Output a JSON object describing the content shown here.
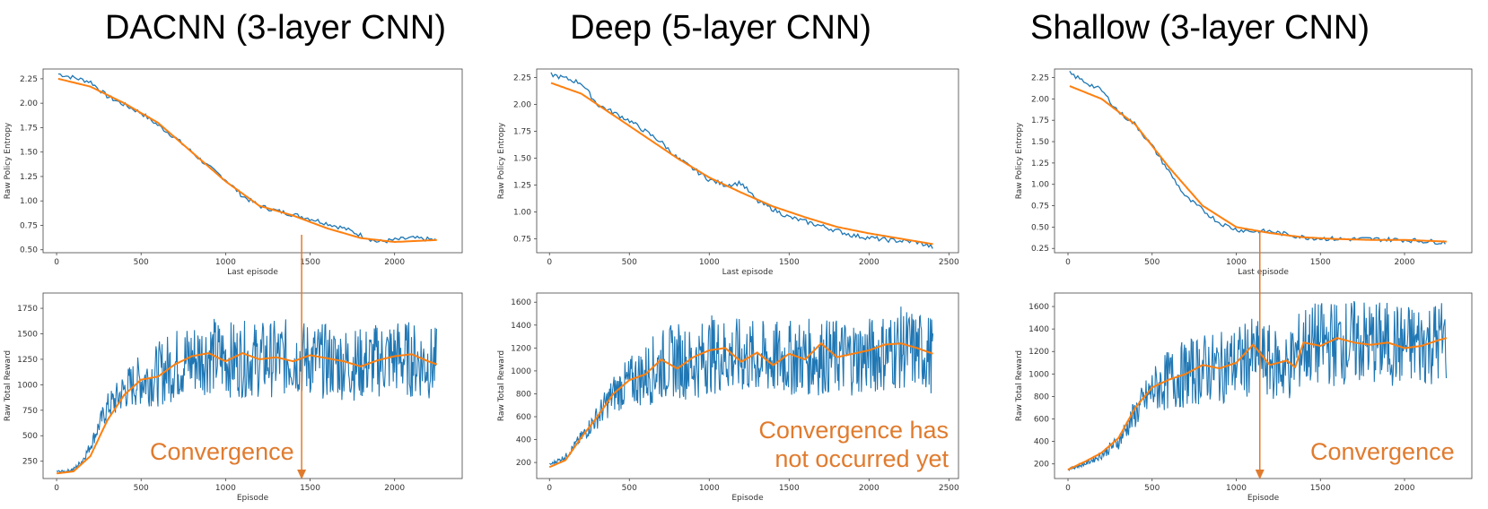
{
  "colors": {
    "raw": "#1F77B4",
    "smooth": "#FF7F0E",
    "annotation": "#E07B2E"
  },
  "columns": [
    {
      "title": "DACNN (3-layer CNN)",
      "annotation": [
        "Convergence"
      ],
      "convergence_episode": 1450
    },
    {
      "title": "Deep (5-layer CNN)",
      "annotation": [
        "Convergence has",
        "not occurred yet"
      ],
      "convergence_episode": null
    },
    {
      "title": "Shallow (3-layer CNN)",
      "annotation": [
        "Convergence"
      ],
      "convergence_episode": 1140
    }
  ],
  "chart_data": [
    {
      "panel": "DACNN entropy",
      "type": "line",
      "xlabel": "Last episode",
      "ylabel": "Raw Policy Entropy",
      "xlim": [
        -80,
        2400
      ],
      "ylim": [
        0.47,
        2.35
      ],
      "xticks": [
        0,
        500,
        1000,
        1500,
        2000
      ],
      "yticks": [
        0.5,
        0.75,
        1.0,
        1.25,
        1.5,
        1.75,
        2.0,
        2.25
      ],
      "ytick_labels": [
        "0.50",
        "0.75",
        "1.00",
        "1.25",
        "1.50",
        "1.75",
        "2.00",
        "2.25"
      ],
      "series": [
        {
          "role": "raw",
          "x": [
            10,
            200,
            300,
            500,
            700,
            900,
            1000,
            1100,
            1200,
            1300,
            1500,
            1700,
            1900,
            2000,
            2100,
            2250
          ],
          "y": [
            2.3,
            2.22,
            2.07,
            1.9,
            1.65,
            1.35,
            1.22,
            1.05,
            0.95,
            0.9,
            0.82,
            0.72,
            0.58,
            0.6,
            0.62,
            0.6
          ]
        },
        {
          "role": "smooth",
          "x": [
            10,
            200,
            400,
            600,
            800,
            1000,
            1200,
            1400,
            1600,
            1800,
            2000,
            2250
          ],
          "y": [
            2.25,
            2.17,
            2.0,
            1.8,
            1.5,
            1.2,
            0.95,
            0.85,
            0.72,
            0.62,
            0.58,
            0.6
          ]
        }
      ]
    },
    {
      "panel": "DACNN reward",
      "type": "line",
      "xlabel": "Episode",
      "ylabel": "Raw Total Reward",
      "xlim": [
        -80,
        2400
      ],
      "ylim": [
        80,
        1900
      ],
      "xticks": [
        0,
        500,
        1000,
        1500,
        2000
      ],
      "yticks": [
        250,
        500,
        750,
        1000,
        1250,
        1500,
        1750
      ],
      "ytick_labels": [
        "250",
        "500",
        "750",
        "1000",
        "1250",
        "1500",
        "1750"
      ],
      "series": [
        {
          "role": "raw_mean",
          "x": [
            0,
            50,
            100,
            150,
            200,
            250,
            300,
            350,
            400,
            500,
            600,
            700,
            800,
            900,
            1000,
            1200,
            1400,
            1600,
            1800,
            2000,
            2250
          ],
          "y": [
            150,
            150,
            170,
            250,
            400,
            600,
            780,
            850,
            950,
            1050,
            1100,
            1200,
            1250,
            1300,
            1250,
            1250,
            1270,
            1230,
            1200,
            1280,
            1200
          ]
        },
        {
          "role": "smooth",
          "x": [
            0,
            100,
            200,
            300,
            400,
            500,
            600,
            700,
            800,
            900,
            1000,
            1100,
            1200,
            1300,
            1400,
            1500,
            1600,
            1700,
            1800,
            1900,
            2000,
            2100,
            2200,
            2250
          ],
          "y": [
            130,
            150,
            300,
            650,
            900,
            1050,
            1080,
            1200,
            1280,
            1310,
            1230,
            1310,
            1250,
            1270,
            1230,
            1290,
            1260,
            1230,
            1180,
            1240,
            1280,
            1300,
            1230,
            1200
          ]
        }
      ]
    },
    {
      "panel": "Deep entropy",
      "type": "line",
      "xlabel": "Last episode",
      "ylabel": "Raw Policy Entropy",
      "xlim": [
        -80,
        2560
      ],
      "ylim": [
        0.62,
        2.33
      ],
      "xticks": [
        0,
        500,
        1000,
        1500,
        2000,
        2500
      ],
      "yticks": [
        0.75,
        1.0,
        1.25,
        1.5,
        1.75,
        2.0,
        2.25
      ],
      "ytick_labels": [
        "0.75",
        "1.00",
        "1.25",
        "1.50",
        "1.75",
        "2.00",
        "2.25"
      ],
      "series": [
        {
          "role": "raw",
          "x": [
            10,
            200,
            300,
            500,
            700,
            800,
            900,
            1000,
            1100,
            1200,
            1300,
            1500,
            1700,
            1900,
            2100,
            2300,
            2400
          ],
          "y": [
            2.28,
            2.2,
            2.0,
            1.85,
            1.65,
            1.5,
            1.4,
            1.3,
            1.25,
            1.27,
            1.1,
            0.95,
            0.87,
            0.78,
            0.74,
            0.72,
            0.67
          ]
        },
        {
          "role": "smooth",
          "x": [
            10,
            200,
            400,
            600,
            800,
            1000,
            1200,
            1400,
            1600,
            1800,
            2000,
            2200,
            2400
          ],
          "y": [
            2.2,
            2.1,
            1.9,
            1.7,
            1.5,
            1.32,
            1.18,
            1.05,
            0.95,
            0.86,
            0.8,
            0.75,
            0.7
          ]
        }
      ]
    },
    {
      "panel": "Deep reward",
      "type": "line",
      "xlabel": "Episode",
      "ylabel": "Raw Total Reward",
      "xlim": [
        -80,
        2560
      ],
      "ylim": [
        60,
        1680
      ],
      "xticks": [
        0,
        500,
        1000,
        1500,
        2000,
        2500
      ],
      "yticks": [
        200,
        400,
        600,
        800,
        1000,
        1200,
        1400,
        1600
      ],
      "ytick_labels": [
        "200",
        "400",
        "600",
        "800",
        "1000",
        "1200",
        "1400",
        "1600"
      ],
      "series": [
        {
          "role": "raw_mean",
          "x": [
            0,
            100,
            200,
            300,
            400,
            500,
            600,
            700,
            800,
            900,
            1000,
            1200,
            1400,
            1600,
            1800,
            2000,
            2200,
            2400
          ],
          "y": [
            180,
            250,
            420,
            600,
            800,
            900,
            970,
            1050,
            1100,
            1050,
            1150,
            1120,
            1100,
            1120,
            1120,
            1130,
            1200,
            1150
          ]
        },
        {
          "role": "smooth",
          "x": [
            0,
            100,
            200,
            300,
            400,
            500,
            600,
            700,
            800,
            900,
            1000,
            1100,
            1200,
            1300,
            1400,
            1500,
            1600,
            1700,
            1800,
            1900,
            2000,
            2100,
            2200,
            2300,
            2400
          ],
          "y": [
            160,
            220,
            420,
            600,
            800,
            920,
            970,
            1100,
            1020,
            1120,
            1180,
            1200,
            1080,
            1160,
            1050,
            1150,
            1100,
            1240,
            1120,
            1150,
            1180,
            1230,
            1240,
            1200,
            1150
          ]
        }
      ]
    },
    {
      "panel": "Shallow entropy",
      "type": "line",
      "xlabel": "Last episode",
      "ylabel": "Raw Policy Entropy",
      "xlim": [
        -80,
        2400
      ],
      "ylim": [
        0.2,
        2.35
      ],
      "xticks": [
        0,
        500,
        1000,
        1500,
        2000
      ],
      "yticks": [
        0.25,
        0.5,
        0.75,
        1.0,
        1.25,
        1.5,
        1.75,
        2.0,
        2.25
      ],
      "ytick_labels": [
        "0.25",
        "0.50",
        "0.75",
        "1.00",
        "1.25",
        "1.50",
        "1.75",
        "2.00",
        "2.25"
      ],
      "series": [
        {
          "role": "raw",
          "x": [
            10,
            100,
            200,
            300,
            400,
            500,
            600,
            700,
            800,
            900,
            1000,
            1100,
            1200,
            1400,
            1600,
            1800,
            2000,
            2250
          ],
          "y": [
            2.3,
            2.2,
            2.1,
            1.85,
            1.7,
            1.45,
            1.15,
            0.85,
            0.7,
            0.55,
            0.47,
            0.45,
            0.45,
            0.38,
            0.36,
            0.36,
            0.35,
            0.32
          ]
        },
        {
          "role": "smooth",
          "x": [
            10,
            200,
            400,
            600,
            800,
            1000,
            1200,
            1400,
            1600,
            1800,
            2000,
            2250
          ],
          "y": [
            2.15,
            2.0,
            1.7,
            1.2,
            0.75,
            0.5,
            0.43,
            0.38,
            0.36,
            0.35,
            0.35,
            0.33
          ]
        }
      ]
    },
    {
      "panel": "Shallow reward",
      "type": "line",
      "xlabel": "Episode",
      "ylabel": "Raw Total Reward",
      "xlim": [
        -80,
        2400
      ],
      "ylim": [
        70,
        1720
      ],
      "xticks": [
        0,
        500,
        1000,
        1500,
        2000
      ],
      "yticks": [
        200,
        400,
        600,
        800,
        1000,
        1200,
        1400,
        1600
      ],
      "ytick_labels": [
        "200",
        "400",
        "600",
        "800",
        "1000",
        "1200",
        "1400",
        "1600"
      ],
      "series": [
        {
          "role": "raw_mean",
          "x": [
            0,
            100,
            200,
            300,
            400,
            500,
            600,
            700,
            800,
            900,
            1000,
            1100,
            1200,
            1300,
            1400,
            1600,
            1800,
            2000,
            2250
          ],
          "y": [
            150,
            200,
            280,
            400,
            650,
            850,
            950,
            1000,
            1050,
            1050,
            1100,
            1150,
            1100,
            1050,
            1250,
            1280,
            1280,
            1250,
            1300
          ]
        },
        {
          "role": "smooth",
          "x": [
            0,
            100,
            200,
            300,
            400,
            500,
            600,
            700,
            800,
            900,
            1000,
            1100,
            1200,
            1300,
            1350,
            1400,
            1500,
            1600,
            1700,
            1800,
            1900,
            2000,
            2100,
            2200,
            2250
          ],
          "y": [
            150,
            220,
            300,
            430,
            700,
            880,
            950,
            1000,
            1080,
            1050,
            1100,
            1260,
            1080,
            1120,
            1060,
            1280,
            1250,
            1320,
            1280,
            1260,
            1280,
            1230,
            1250,
            1300,
            1320
          ]
        }
      ]
    }
  ]
}
